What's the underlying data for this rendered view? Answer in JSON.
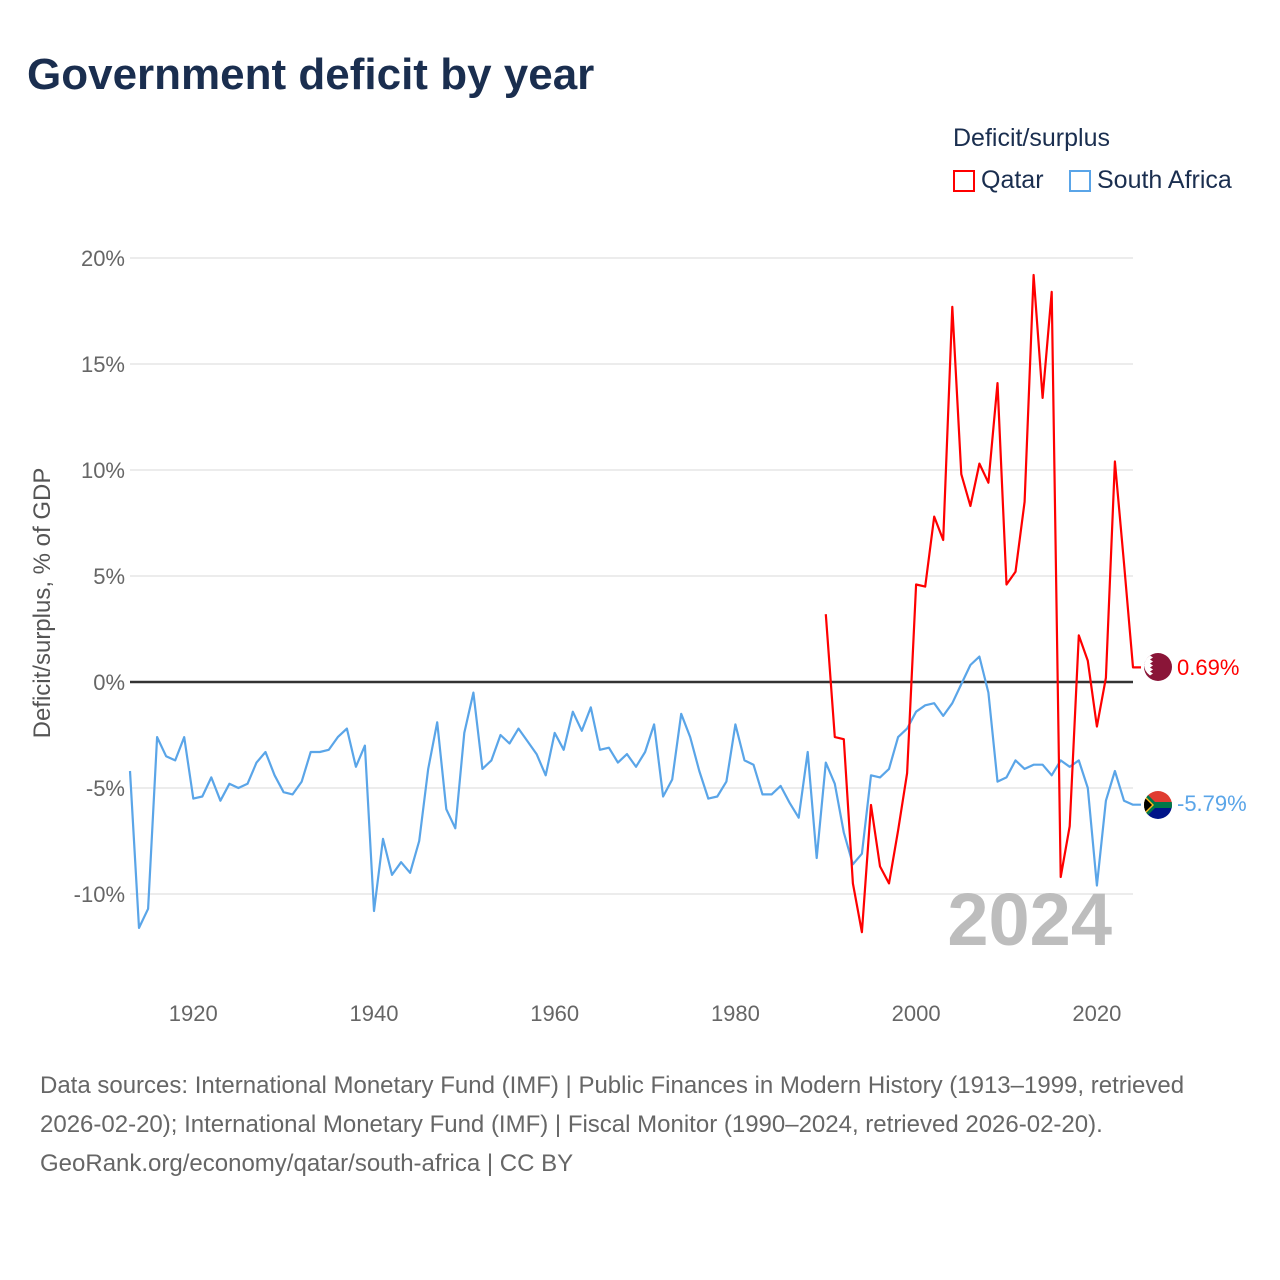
{
  "title": "Government deficit by year",
  "legend": {
    "title": "Deficit/surplus",
    "items": [
      {
        "name": "Qatar",
        "color": "#ff0000"
      },
      {
        "name": "South Africa",
        "color": "#5aa5e8"
      }
    ]
  },
  "footer": {
    "sources": "Data sources: International Monetary Fund (IMF) | Public Finances in Modern History (1913–1999, retrieved 2026-02-20); International Monetary Fund (IMF) | Fiscal Monitor (1990–2024, retrieved 2026-02-20).",
    "credit": "GeoRank.org/economy/qatar/south-africa | CC BY"
  },
  "chart_data": {
    "type": "line",
    "title": "Government deficit by year",
    "xlabel": "",
    "ylabel": "Deficit/surplus, % of GDP",
    "xlim": [
      1913,
      2024
    ],
    "ylim": [
      -12.5,
      20
    ],
    "yticks": [
      20,
      15,
      10,
      5,
      0,
      -5,
      -10
    ],
    "ytick_labels": [
      "20%",
      "15%",
      "10%",
      "5%",
      "0%",
      "-5%",
      "-10%"
    ],
    "xticks": [
      1920,
      1940,
      1960,
      1980,
      2000,
      2020
    ],
    "xtick_labels": [
      "1920",
      "1940",
      "1960",
      "1980",
      "2000",
      "2020"
    ],
    "year_watermark": "2024",
    "grid": true,
    "legend_position": "top-right",
    "series": [
      {
        "name": "Qatar",
        "color": "#ff0000",
        "end_label": "0.69%",
        "start": 1990,
        "values": [
          3.2,
          -2.6,
          -2.7,
          -9.5,
          -11.8,
          -5.8,
          -8.7,
          -9.5,
          -7.0,
          -4.3,
          4.6,
          4.5,
          7.8,
          6.7,
          17.7,
          9.8,
          8.3,
          10.3,
          9.4,
          14.1,
          4.6,
          5.2,
          8.5,
          19.2,
          13.4,
          18.4,
          -9.2,
          -6.8,
          2.2,
          1.0,
          -2.1,
          0.2,
          10.4,
          5.6,
          0.69
        ]
      },
      {
        "name": "South Africa",
        "color": "#5aa5e8",
        "end_label": "-5.79%",
        "start": 1913,
        "values": [
          -4.2,
          -11.6,
          -10.7,
          -2.6,
          -3.5,
          -3.7,
          -2.6,
          -5.5,
          -5.4,
          -4.5,
          -5.6,
          -4.8,
          -5.0,
          -4.8,
          -3.8,
          -3.3,
          -4.4,
          -5.2,
          -5.3,
          -4.7,
          -3.3,
          -3.3,
          -3.2,
          -2.6,
          -2.2,
          -4.0,
          -3.0,
          -10.8,
          -7.4,
          -9.1,
          -8.5,
          -9.0,
          -7.5,
          -4.1,
          -1.9,
          -6.0,
          -6.9,
          -2.4,
          -0.5,
          -4.1,
          -3.7,
          -2.5,
          -2.9,
          -2.2,
          -2.8,
          -3.4,
          -4.4,
          -2.4,
          -3.2,
          -1.4,
          -2.3,
          -1.2,
          -3.2,
          -3.1,
          -3.8,
          -3.4,
          -4.0,
          -3.3,
          -2.0,
          -5.4,
          -4.6,
          -1.5,
          -2.6,
          -4.2,
          -5.5,
          -5.4,
          -4.7,
          -2.0,
          -3.7,
          -3.9,
          -5.3,
          -5.3,
          -4.9,
          -5.7,
          -6.4,
          -3.3,
          -8.3,
          -3.8,
          -4.8,
          -7.1,
          -8.6,
          -8.1,
          -4.4,
          -4.5,
          -4.1,
          -2.6,
          -2.2,
          -1.4,
          -1.1,
          -1.0,
          -1.6,
          -1.0,
          -0.1,
          0.8,
          1.2,
          -0.5,
          -4.7,
          -4.5,
          -3.7,
          -4.1,
          -3.9,
          -3.9,
          -4.4,
          -3.7,
          -4.0,
          -3.7,
          -5.0,
          -9.6,
          -5.6,
          -4.2,
          -5.6,
          -5.79
        ]
      }
    ]
  }
}
